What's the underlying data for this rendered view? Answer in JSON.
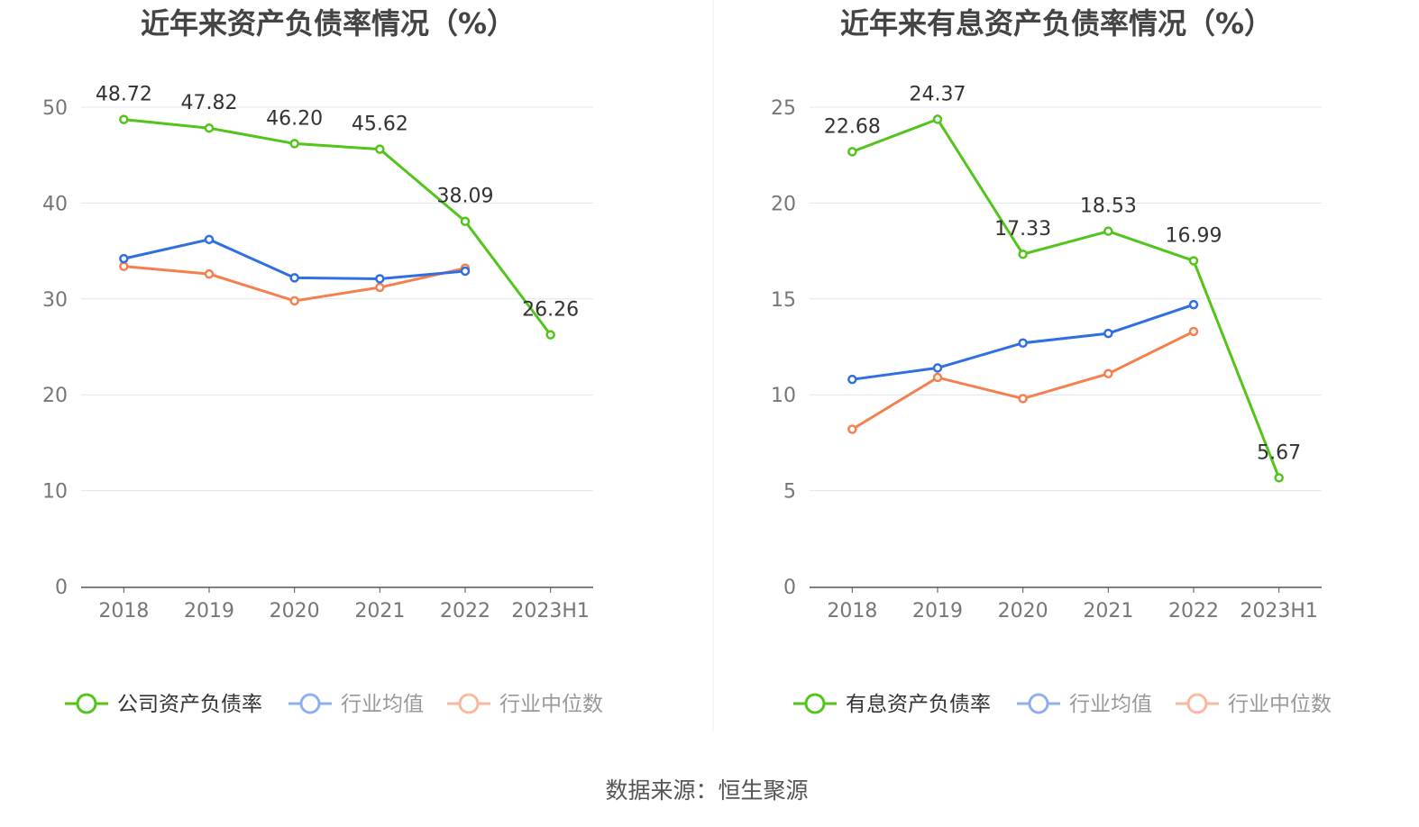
{
  "source": "数据来源：恒生聚源",
  "colors": {
    "company": "#52c41a",
    "avg": "#2f6fe0",
    "median": "#f5804f",
    "avg_legend": "#8fb0ef",
    "median_legend": "#f8b9a0",
    "grid": "#dde4ee",
    "axis": "#555555"
  },
  "chart_data": [
    {
      "type": "line",
      "title": "近年来资产负债率情况（%）",
      "categories": [
        "2018",
        "2019",
        "2020",
        "2021",
        "2022",
        "2023H1"
      ],
      "ylim": [
        0,
        50
      ],
      "yticks": [
        0,
        10,
        20,
        30,
        40,
        50
      ],
      "grid": true,
      "legend_position": "bottom",
      "series": [
        {
          "name": "公司资产负债率",
          "values": [
            48.72,
            47.82,
            46.2,
            45.62,
            38.09,
            26.26
          ],
          "labels": [
            "48.72",
            "47.82",
            "46.20",
            "45.62",
            "38.09",
            "26.26"
          ]
        },
        {
          "name": "行业均值",
          "values": [
            34.2,
            36.2,
            32.2,
            32.1,
            32.9,
            null
          ]
        },
        {
          "name": "行业中位数",
          "values": [
            33.4,
            32.6,
            29.8,
            31.2,
            33.2,
            null
          ]
        }
      ]
    },
    {
      "type": "line",
      "title": "近年来有息资产负债率情况（%）",
      "categories": [
        "2018",
        "2019",
        "2020",
        "2021",
        "2022",
        "2023H1"
      ],
      "ylim": [
        0,
        25
      ],
      "yticks": [
        0,
        5,
        10,
        15,
        20,
        25
      ],
      "grid": true,
      "legend_position": "bottom",
      "series": [
        {
          "name": "有息资产负债率",
          "values": [
            22.68,
            24.37,
            17.33,
            18.53,
            16.99,
            5.67
          ],
          "labels": [
            "22.68",
            "24.37",
            "17.33",
            "18.53",
            "16.99",
            "5.67"
          ]
        },
        {
          "name": "行业均值",
          "values": [
            10.8,
            11.4,
            12.7,
            13.2,
            14.7,
            null
          ]
        },
        {
          "name": "行业中位数",
          "values": [
            8.2,
            10.9,
            9.8,
            11.1,
            13.3,
            null
          ]
        }
      ]
    }
  ]
}
